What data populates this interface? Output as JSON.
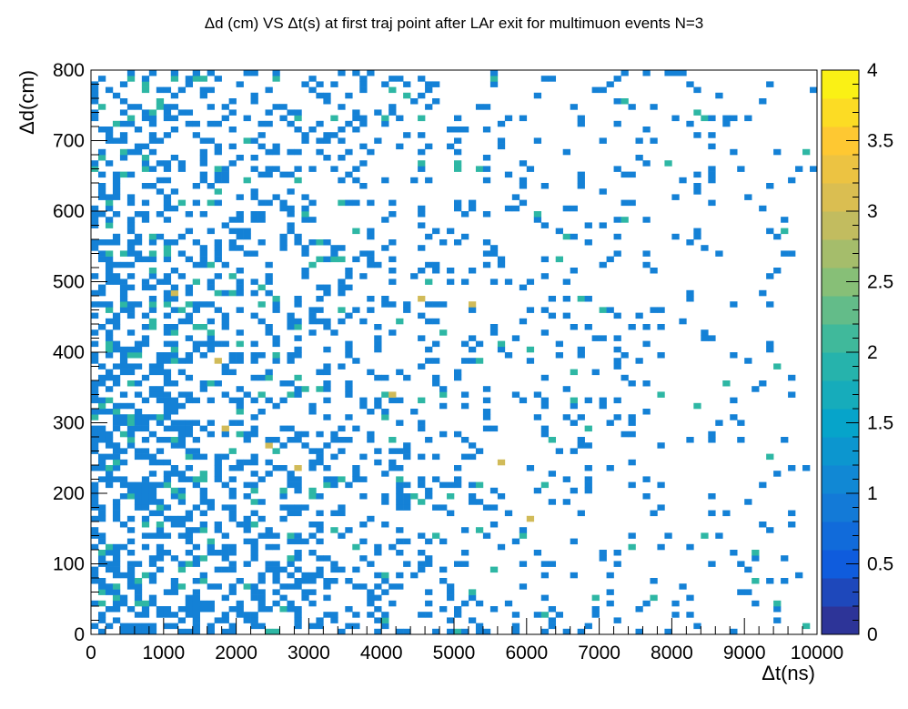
{
  "chart_data": {
    "type": "heatmap",
    "title": "Δd (cm) VS Δt(s) at first traj point after LAr exit for multimuon events N=3",
    "xlabel": "Δt(ns)",
    "ylabel": "Δd(cm)",
    "xlim": [
      0,
      10000
    ],
    "ylim": [
      0,
      800
    ],
    "x_ticks": [
      0,
      1000,
      2000,
      3000,
      4000,
      5000,
      6000,
      7000,
      8000,
      9000,
      10000
    ],
    "y_ticks": [
      0,
      100,
      200,
      300,
      400,
      500,
      600,
      700,
      800
    ],
    "z_range": [
      0,
      4
    ],
    "z_ticks": [
      "0",
      "0.5",
      "1",
      "1.5",
      "2",
      "2.5",
      "3",
      "3.5",
      "4"
    ],
    "bins": {
      "nx": 100,
      "ny": 100
    },
    "density_note_values": {
      "high_count_cells": [
        {
          "x": 1800,
          "y": 295,
          "z": 3
        },
        {
          "x": 2400,
          "y": 270,
          "z": 3
        },
        {
          "x": 6000,
          "y": 165,
          "z": 3
        },
        {
          "x": 1150,
          "y": 485,
          "z": 3
        },
        {
          "x": 4500,
          "y": 475,
          "z": 3
        },
        {
          "x": 5200,
          "y": 470,
          "z": 3
        },
        {
          "x": 4150,
          "y": 340,
          "z": 3
        },
        {
          "x": 1700,
          "y": 390,
          "z": 3
        },
        {
          "x": 2850,
          "y": 235,
          "z": 3
        },
        {
          "x": 5650,
          "y": 245,
          "z": 3
        }
      ]
    },
    "palette": [
      "#352a87",
      "#0f5cdd",
      "#1481d6",
      "#06a4ca",
      "#2eb7a4",
      "#87bf77",
      "#d1bb59",
      "#fec832",
      "#f9fb0e"
    ]
  }
}
